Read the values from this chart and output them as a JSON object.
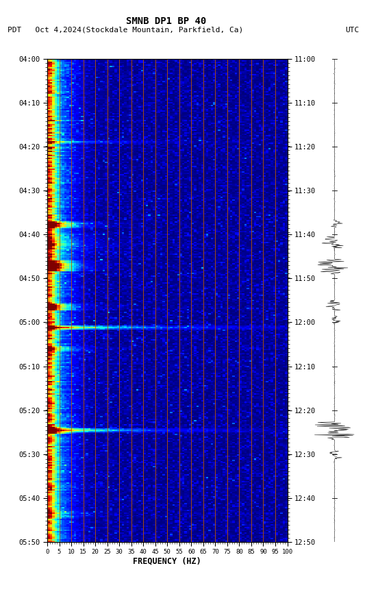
{
  "title": "SMNB DP1 BP 40",
  "subtitle_left": "PDT   Oct 4,2024(Stockdale Mountain, Parkfield, Ca)",
  "subtitle_right": "UTC",
  "xlabel": "FREQUENCY (HZ)",
  "freq_min": 0,
  "freq_max": 100,
  "freq_ticks": [
    0,
    5,
    10,
    15,
    20,
    25,
    30,
    35,
    40,
    45,
    50,
    55,
    60,
    65,
    70,
    75,
    80,
    85,
    90,
    95,
    100
  ],
  "freq_gridlines": [
    5,
    10,
    15,
    20,
    25,
    30,
    35,
    40,
    45,
    50,
    55,
    60,
    65,
    70,
    75,
    80,
    85,
    90,
    95,
    100
  ],
  "time_ticks_pdt": [
    "04:00",
    "04:10",
    "04:20",
    "04:30",
    "04:40",
    "04:50",
    "05:00",
    "05:10",
    "05:20",
    "05:30",
    "05:40",
    "05:50"
  ],
  "time_ticks_utc": [
    "11:00",
    "11:10",
    "11:20",
    "11:30",
    "11:40",
    "11:50",
    "12:00",
    "12:10",
    "12:20",
    "12:30",
    "12:40",
    "12:50"
  ],
  "n_time": 357,
  "n_freq": 100,
  "background_color": "#ffffff",
  "orange_line_color": "#bb5500"
}
